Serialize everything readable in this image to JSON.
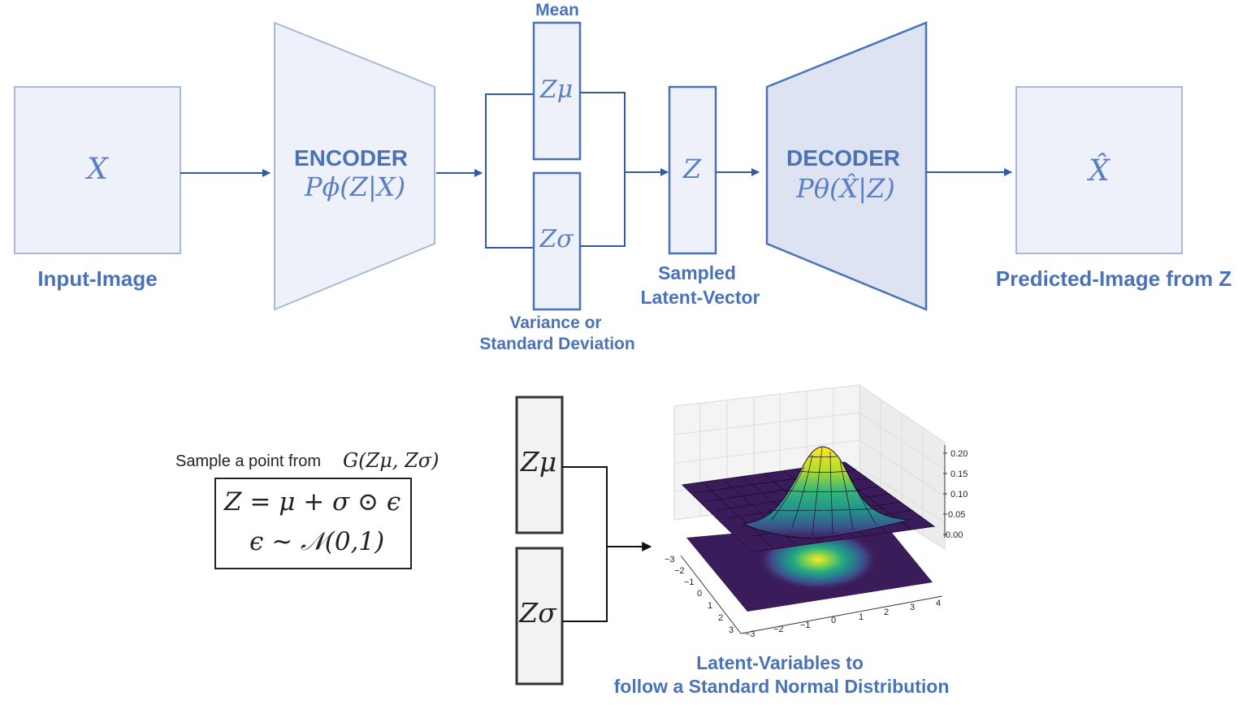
{
  "input": {
    "symbol": "X",
    "caption": "Input-Image"
  },
  "encoder": {
    "title": "ENCODER",
    "formula": "Pϕ(Z|X)"
  },
  "latent_mean": {
    "symbol": "Zμ",
    "caption": "Mean"
  },
  "latent_std": {
    "symbol": "Zσ",
    "caption_line1": "Variance or",
    "caption_line2": "Standard Deviation"
  },
  "sampled": {
    "symbol": "Z",
    "caption_line1": "Sampled",
    "caption_line2": "Latent-Vector"
  },
  "decoder": {
    "title": "DECODER",
    "formula": "Pθ(X̂|Z)"
  },
  "output": {
    "symbol": "X̂",
    "caption": "Predicted-Image from Z"
  },
  "sampling": {
    "caption_prefix": "Sample a point from",
    "caption_formula": "G(Zμ, Zσ)",
    "equation_1": "Z = μ + σ ⊙ ϵ",
    "equation_2": "ϵ ~ 𝒩(0,1)"
  },
  "bottom": {
    "mu_symbol": "Zμ",
    "sigma_symbol": "Zσ",
    "caption_line1": "Latent-Variables to",
    "caption_line2": "follow a Standard Normal Distribution"
  },
  "plot_axes": {
    "z_ticks": [
      "0.20",
      "0.15",
      "0.10",
      "0.05",
      "0.00"
    ],
    "y_ticks": [
      "−3",
      "−2",
      "−1",
      "0",
      "1",
      "2",
      "3"
    ],
    "x_ticks": [
      "−3",
      "−2",
      "−1",
      "0",
      "1",
      "2",
      "3",
      "4"
    ]
  },
  "colors": {
    "diagram_blue": "#4a72b8",
    "box_fill": "#eef1f9",
    "decoder_fill": "#dde3f1",
    "surface_dark": "#3b1c5a",
    "surface_peak": "#fde725"
  }
}
